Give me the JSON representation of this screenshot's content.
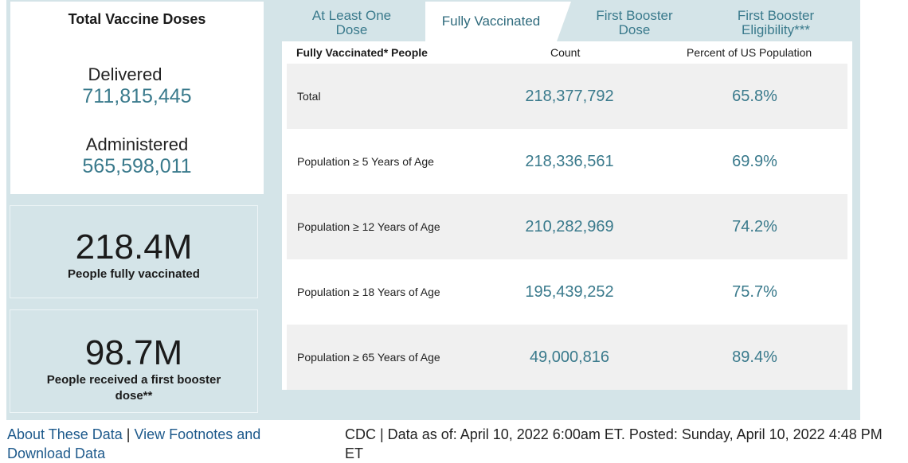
{
  "left": {
    "doses_title": "Total Vaccine Doses",
    "delivered_label": "Delivered",
    "delivered_value": "711,815,445",
    "administered_label": "Administered",
    "administered_value": "565,598,011",
    "fully_big": "218.4M",
    "fully_caption": "People fully vaccinated",
    "booster_big": "98.7M",
    "booster_caption_line1": "People received a first booster",
    "booster_caption_line2": "dose**"
  },
  "tabs": [
    {
      "line1": "At Least One",
      "line2": "Dose"
    },
    {
      "line1": "Fully Vaccinated",
      "line2": ""
    },
    {
      "line1": "First Booster",
      "line2": "Dose"
    },
    {
      "line1": "First Booster",
      "line2": "Eligibility***"
    }
  ],
  "table": {
    "headers": [
      "Fully Vaccinated* People",
      "Count",
      "Percent of US Population"
    ],
    "rows": [
      {
        "label": "Total",
        "count": "218,377,792",
        "percent": "65.8%"
      },
      {
        "label": "Population ≥ 5 Years of Age",
        "count": "218,336,561",
        "percent": "69.9%"
      },
      {
        "label": "Population ≥ 12 Years of Age",
        "count": "210,282,969",
        "percent": "74.2%"
      },
      {
        "label": "Population ≥ 18 Years of Age",
        "count": "195,439,252",
        "percent": "75.7%"
      },
      {
        "label": "Population ≥ 65 Years of Age",
        "count": "49,000,816",
        "percent": "89.4%"
      }
    ]
  },
  "footer": {
    "about_link": "About These Data",
    "separator": "|",
    "footnotes_link": "View Footnotes and Download Data",
    "status_text": "CDC | Data as of: April 10, 2022 6:00am ET. Posted: Sunday, April 10, 2022 4:48 PM ET"
  },
  "colors": {
    "panel_bg": "#d4e4e8",
    "accent_teal": "#3a7a8c",
    "link_blue": "#1e5a8c",
    "row_alt": "#f0f0f0"
  }
}
